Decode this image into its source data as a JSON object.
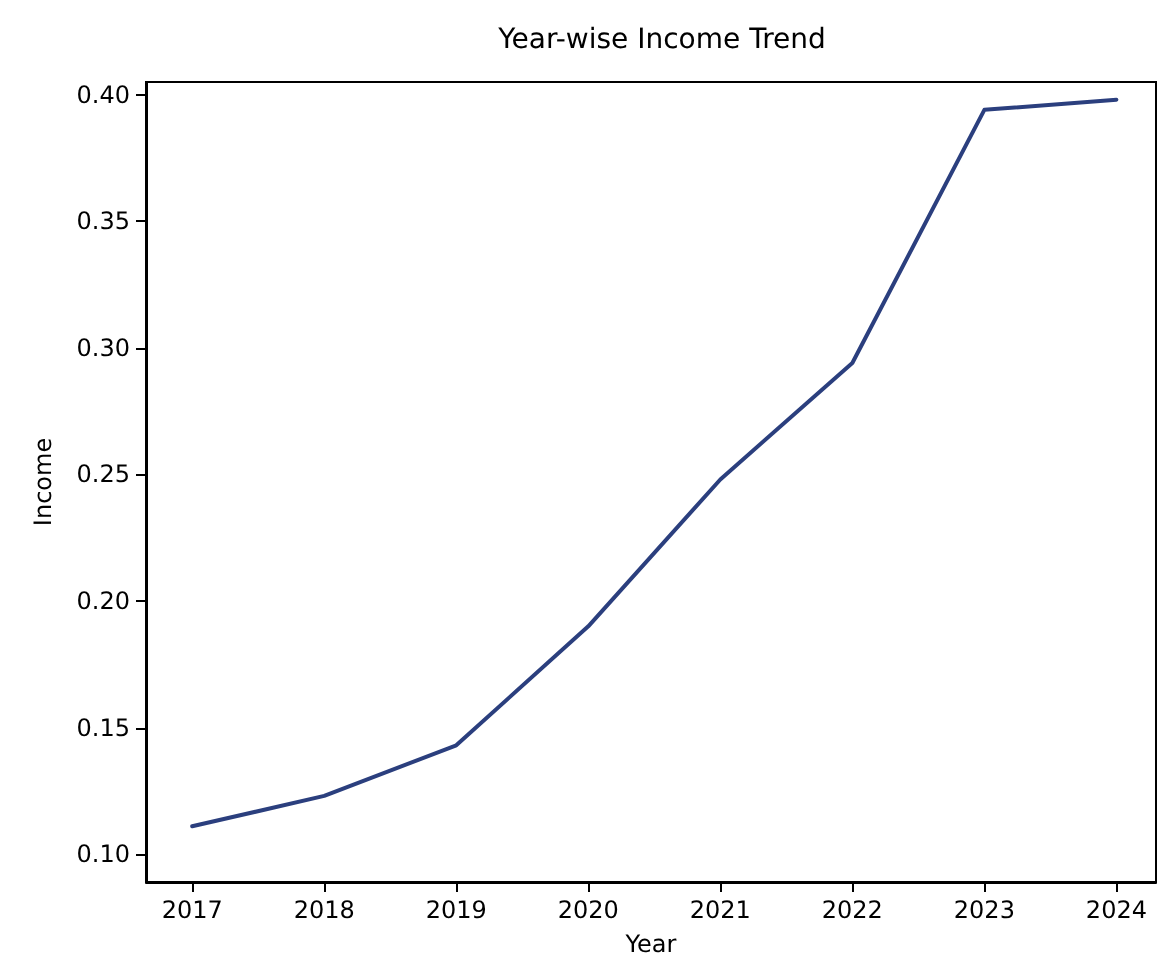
{
  "chart_data": {
    "type": "line",
    "title": "Year-wise Income Trend",
    "xlabel": "Year",
    "ylabel": "Income",
    "x": [
      2017,
      2018,
      2019,
      2020,
      2021,
      2022,
      2023,
      2024
    ],
    "series": [
      {
        "color": "#2b3f7e",
        "values": [
          0.111,
          0.123,
          0.143,
          0.19,
          0.248,
          0.294,
          0.394,
          0.398
        ]
      }
    ],
    "xlim": [
      2016.65,
      2024.3
    ],
    "xticks": [
      2017,
      2018,
      2019,
      2020,
      2021,
      2022,
      2023,
      2024
    ],
    "ylim": [
      0.089,
      0.405
    ],
    "yticks": [
      {
        "value": 0.1,
        "label": "0.10"
      },
      {
        "value": 0.15,
        "label": "0.15"
      },
      {
        "value": 0.2,
        "label": "0.20"
      },
      {
        "value": 0.25,
        "label": "0.25"
      },
      {
        "value": 0.3,
        "label": "0.30"
      },
      {
        "value": 0.35,
        "label": "0.35"
      },
      {
        "value": 0.4,
        "label": "0.40"
      }
    ],
    "grid": false,
    "marker": "none",
    "line_style": "solid"
  }
}
